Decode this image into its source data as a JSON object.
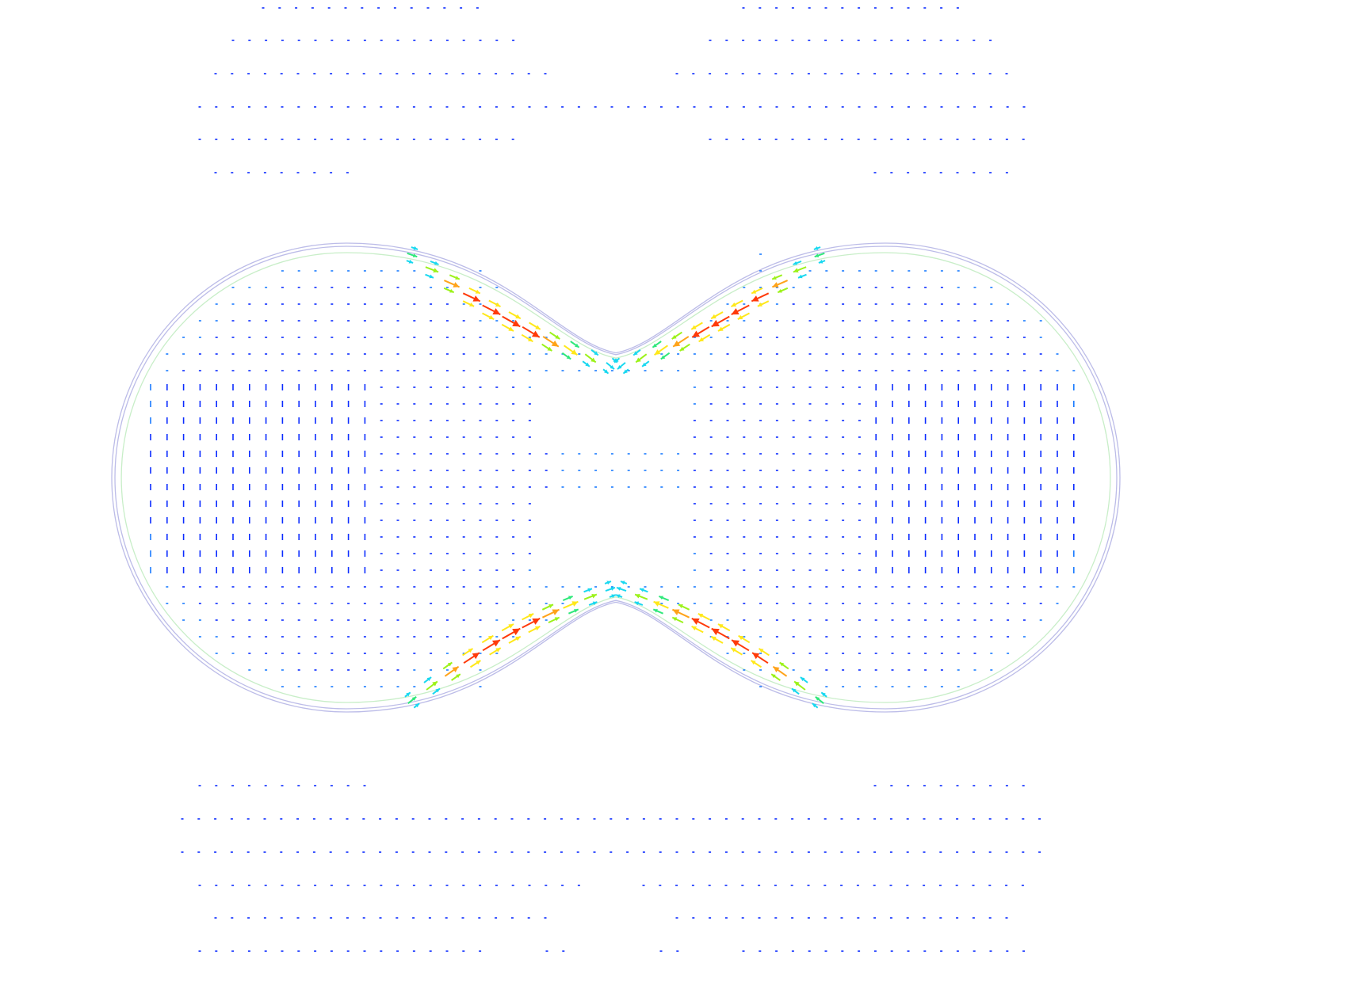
{
  "figure": {
    "description_visible_text": "",
    "outline_colors": {
      "outer": "#bcbce8",
      "inner": "#c8eec8"
    },
    "colormap": [
      "#0b2cff",
      "#1a7bff",
      "#19d8f0",
      "#2fe87a",
      "#9cf21a",
      "#ffe81a",
      "#ffa319",
      "#ff3a0a"
    ],
    "background": "#ffffff"
  }
}
